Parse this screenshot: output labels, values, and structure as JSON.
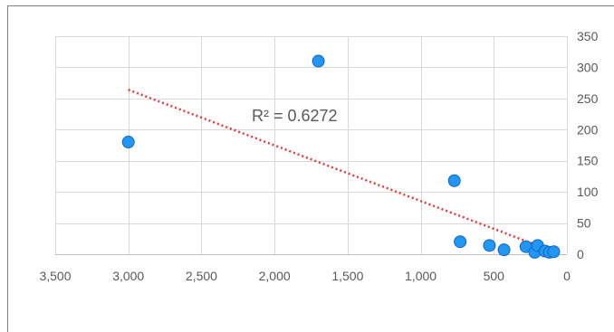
{
  "chart_data": {
    "type": "scatter",
    "title": "",
    "xlabel": "",
    "ylabel": "",
    "x_axis": {
      "min": 0,
      "max": 3500,
      "step": 500,
      "reversed": true,
      "tick_labels": [
        "3,500",
        "3,000",
        "2,500",
        "2,000",
        "1,500",
        "1,000",
        "500",
        "0"
      ]
    },
    "y_axis": {
      "min": 0,
      "max": 350,
      "step": 50,
      "position": "right",
      "tick_labels": [
        "0",
        "50",
        "100",
        "150",
        "200",
        "250",
        "300",
        "350"
      ]
    },
    "grid": true,
    "marker_color": "#2196f3",
    "marker_edge_color": "#1565c0",
    "trendline": {
      "type": "linear",
      "style": "dotted",
      "color": "#e53935",
      "x_from": 3000,
      "x_to": 100,
      "y_from": 264,
      "y_to": 5,
      "r_squared_label": "R² = 0.6272"
    },
    "points": [
      {
        "x": 3000,
        "y": 180
      },
      {
        "x": 1700,
        "y": 310
      },
      {
        "x": 770,
        "y": 118
      },
      {
        "x": 730,
        "y": 20
      },
      {
        "x": 530,
        "y": 14
      },
      {
        "x": 430,
        "y": 7
      },
      {
        "x": 280,
        "y": 12
      },
      {
        "x": 220,
        "y": 3
      },
      {
        "x": 200,
        "y": 14
      },
      {
        "x": 150,
        "y": 5
      },
      {
        "x": 120,
        "y": 3
      },
      {
        "x": 90,
        "y": 4
      }
    ]
  }
}
